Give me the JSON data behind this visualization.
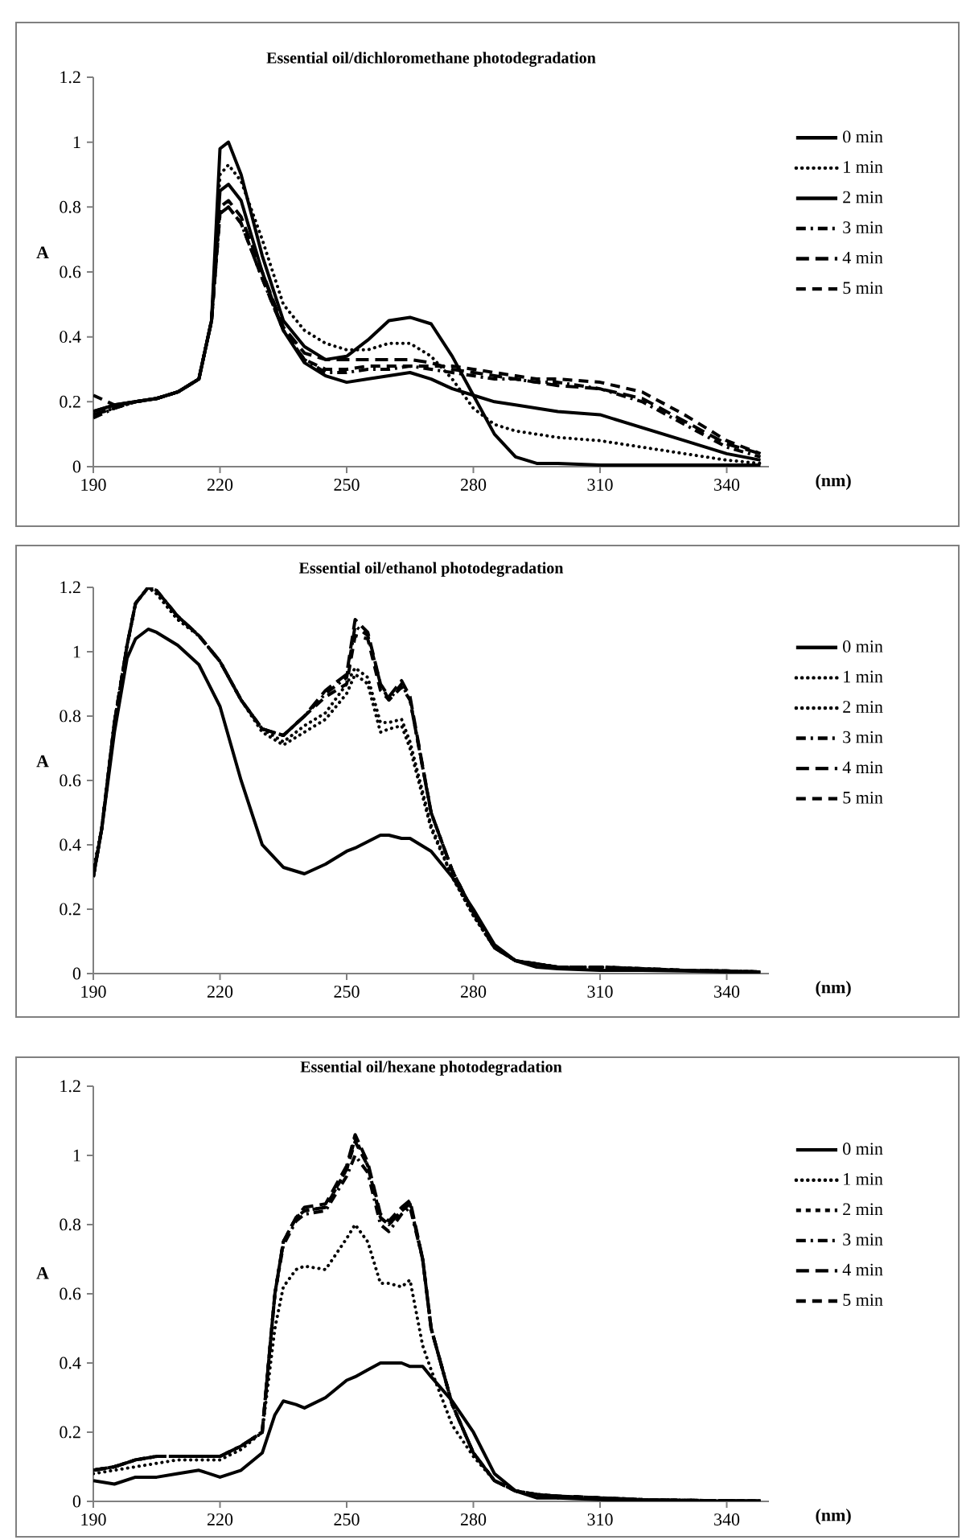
{
  "chart_data": [
    {
      "type": "line",
      "title": "Essential oil/dichloromethane photodegradation",
      "xlabel": "(nm)",
      "ylabel": "A",
      "xlim": [
        190,
        350
      ],
      "xticks": [
        190,
        220,
        250,
        280,
        310,
        340
      ],
      "ylim": [
        0,
        1.2
      ],
      "yticks": [
        0,
        0.2,
        0.4,
        0.6,
        0.8,
        1,
        1.2
      ],
      "legend": "right",
      "x": [
        190,
        195,
        200,
        205,
        210,
        215,
        218,
        220,
        222,
        225,
        230,
        235,
        240,
        245,
        250,
        255,
        260,
        265,
        270,
        275,
        280,
        285,
        290,
        295,
        300,
        310,
        320,
        330,
        340,
        348
      ],
      "series": [
        {
          "name": "0 min",
          "color": "#000000",
          "line_style": "solid",
          "values": [
            0.17,
            0.19,
            0.2,
            0.21,
            0.23,
            0.27,
            0.45,
            0.98,
            1.0,
            0.9,
            0.65,
            0.45,
            0.37,
            0.33,
            0.34,
            0.39,
            0.45,
            0.46,
            0.44,
            0.34,
            0.22,
            0.1,
            0.03,
            0.01,
            0.01,
            0.005,
            0.005,
            0.005,
            0.005,
            0.005
          ]
        },
        {
          "name": "1 min",
          "color": "#000000",
          "line_style": "dotted",
          "values": [
            0.16,
            0.18,
            0.2,
            0.21,
            0.23,
            0.27,
            0.45,
            0.9,
            0.93,
            0.88,
            0.7,
            0.5,
            0.42,
            0.38,
            0.36,
            0.36,
            0.38,
            0.38,
            0.34,
            0.27,
            0.18,
            0.13,
            0.11,
            0.1,
            0.09,
            0.08,
            0.06,
            0.04,
            0.02,
            0.01
          ]
        },
        {
          "name": "2 min",
          "color": "#000000",
          "line_style": "solid",
          "values": [
            0.17,
            0.19,
            0.2,
            0.21,
            0.23,
            0.27,
            0.45,
            0.85,
            0.87,
            0.82,
            0.6,
            0.42,
            0.32,
            0.28,
            0.26,
            0.27,
            0.28,
            0.29,
            0.27,
            0.24,
            0.22,
            0.2,
            0.19,
            0.18,
            0.17,
            0.16,
            0.12,
            0.08,
            0.04,
            0.02
          ]
        },
        {
          "name": "3 min",
          "color": "#000000",
          "line_style": "dashed",
          "values": [
            0.15,
            0.18,
            0.2,
            0.21,
            0.23,
            0.27,
            0.45,
            0.78,
            0.8,
            0.75,
            0.58,
            0.42,
            0.33,
            0.29,
            0.29,
            0.3,
            0.3,
            0.31,
            0.3,
            0.29,
            0.28,
            0.27,
            0.27,
            0.26,
            0.26,
            0.24,
            0.2,
            0.13,
            0.06,
            0.03
          ]
        },
        {
          "name": "4 min",
          "color": "#000000",
          "line_style": "dashed",
          "values": [
            0.16,
            0.18,
            0.2,
            0.21,
            0.23,
            0.27,
            0.45,
            0.8,
            0.82,
            0.77,
            0.6,
            0.43,
            0.35,
            0.33,
            0.33,
            0.33,
            0.33,
            0.33,
            0.32,
            0.3,
            0.29,
            0.28,
            0.27,
            0.26,
            0.25,
            0.24,
            0.21,
            0.14,
            0.07,
            0.04
          ]
        },
        {
          "name": "5 min",
          "color": "#000000",
          "line_style": "dashed",
          "values": [
            0.22,
            0.19,
            0.2,
            0.21,
            0.23,
            0.27,
            0.45,
            0.78,
            0.8,
            0.75,
            0.58,
            0.42,
            0.33,
            0.3,
            0.3,
            0.31,
            0.31,
            0.31,
            0.31,
            0.31,
            0.3,
            0.29,
            0.28,
            0.27,
            0.27,
            0.26,
            0.23,
            0.16,
            0.08,
            0.04
          ]
        }
      ]
    },
    {
      "type": "line",
      "title": "Essential oil/ethanol photodegradation",
      "xlabel": "(nm)",
      "ylabel": "A",
      "xlim": [
        190,
        350
      ],
      "xticks": [
        190,
        220,
        250,
        280,
        310,
        340
      ],
      "ylim": [
        0,
        1.2
      ],
      "yticks": [
        0,
        0.2,
        0.4,
        0.6,
        0.8,
        1,
        1.2
      ],
      "legend": "right",
      "x": [
        190,
        192,
        195,
        198,
        200,
        203,
        205,
        210,
        215,
        220,
        225,
        230,
        235,
        240,
        245,
        250,
        252,
        255,
        258,
        260,
        263,
        265,
        270,
        275,
        280,
        285,
        290,
        295,
        300,
        310,
        320,
        330,
        340,
        348
      ],
      "series": [
        {
          "name": "0 min",
          "color": "#000000",
          "line_style": "solid",
          "values": [
            0.3,
            0.45,
            0.75,
            0.98,
            1.04,
            1.07,
            1.06,
            1.02,
            0.96,
            0.83,
            0.6,
            0.4,
            0.33,
            0.31,
            0.34,
            0.38,
            0.39,
            0.41,
            0.43,
            0.43,
            0.42,
            0.42,
            0.38,
            0.3,
            0.2,
            0.09,
            0.04,
            0.02,
            0.015,
            0.01,
            0.01,
            0.008,
            0.005,
            0.005
          ]
        },
        {
          "name": "1 min",
          "color": "#000000",
          "line_style": "dotted",
          "values": [
            0.32,
            0.45,
            0.78,
            1.02,
            1.15,
            1.2,
            1.18,
            1.1,
            1.05,
            0.97,
            0.85,
            0.75,
            0.71,
            0.75,
            0.79,
            0.87,
            0.93,
            0.9,
            0.75,
            0.76,
            0.77,
            0.7,
            0.45,
            0.3,
            0.18,
            0.08,
            0.04,
            0.03,
            0.02,
            0.02,
            0.015,
            0.01,
            0.008,
            0.005
          ]
        },
        {
          "name": "2 min",
          "color": "#000000",
          "line_style": "dotted",
          "values": [
            0.32,
            0.45,
            0.78,
            1.02,
            1.15,
            1.2,
            1.18,
            1.1,
            1.05,
            0.97,
            0.85,
            0.76,
            0.72,
            0.77,
            0.81,
            0.9,
            0.95,
            0.92,
            0.78,
            0.78,
            0.79,
            0.72,
            0.46,
            0.3,
            0.18,
            0.08,
            0.04,
            0.03,
            0.02,
            0.02,
            0.015,
            0.01,
            0.008,
            0.005
          ]
        },
        {
          "name": "3 min",
          "color": "#000000",
          "line_style": "dashed",
          "values": [
            0.3,
            0.45,
            0.78,
            1.02,
            1.15,
            1.2,
            1.19,
            1.11,
            1.05,
            0.97,
            0.85,
            0.76,
            0.74,
            0.8,
            0.87,
            0.92,
            1.08,
            1.05,
            0.9,
            0.85,
            0.9,
            0.85,
            0.5,
            0.32,
            0.19,
            0.08,
            0.04,
            0.03,
            0.02,
            0.02,
            0.015,
            0.01,
            0.008,
            0.005
          ]
        },
        {
          "name": "4 min",
          "color": "#000000",
          "line_style": "dashed",
          "values": [
            0.3,
            0.45,
            0.78,
            1.02,
            1.15,
            1.2,
            1.19,
            1.11,
            1.05,
            0.97,
            0.85,
            0.76,
            0.74,
            0.8,
            0.88,
            0.93,
            1.1,
            1.06,
            0.9,
            0.86,
            0.91,
            0.86,
            0.5,
            0.32,
            0.19,
            0.08,
            0.04,
            0.03,
            0.02,
            0.02,
            0.015,
            0.01,
            0.008,
            0.005
          ]
        },
        {
          "name": "5 min",
          "color": "#000000",
          "line_style": "dashed",
          "values": [
            0.3,
            0.45,
            0.78,
            1.02,
            1.15,
            1.2,
            1.19,
            1.11,
            1.05,
            0.97,
            0.85,
            0.76,
            0.74,
            0.8,
            0.86,
            0.9,
            1.05,
            1.04,
            0.88,
            0.85,
            0.89,
            0.85,
            0.5,
            0.32,
            0.19,
            0.08,
            0.04,
            0.03,
            0.02,
            0.02,
            0.015,
            0.01,
            0.008,
            0.005
          ]
        }
      ]
    },
    {
      "type": "line",
      "title": "Essential oil/hexane photodegradation",
      "xlabel": "(nm)",
      "ylabel": "A",
      "xlim": [
        190,
        350
      ],
      "xticks": [
        190,
        220,
        250,
        280,
        310,
        340
      ],
      "ylim": [
        0,
        1.2
      ],
      "yticks": [
        0,
        0.2,
        0.4,
        0.6,
        0.8,
        1,
        1.2
      ],
      "legend": "right",
      "x": [
        190,
        195,
        200,
        205,
        210,
        215,
        220,
        225,
        230,
        233,
        235,
        238,
        240,
        245,
        250,
        252,
        255,
        258,
        260,
        263,
        265,
        268,
        270,
        275,
        280,
        285,
        290,
        295,
        300,
        310,
        320,
        330,
        340,
        348
      ],
      "series": [
        {
          "name": "0 min",
          "color": "#000000",
          "line_style": "solid",
          "values": [
            0.06,
            0.05,
            0.07,
            0.07,
            0.08,
            0.09,
            0.07,
            0.09,
            0.14,
            0.25,
            0.29,
            0.28,
            0.27,
            0.3,
            0.35,
            0.36,
            0.38,
            0.4,
            0.4,
            0.4,
            0.39,
            0.39,
            0.36,
            0.29,
            0.2,
            0.08,
            0.03,
            0.01,
            0.01,
            0.005,
            0.003,
            0.002,
            0.001,
            0.001
          ]
        },
        {
          "name": "1 min",
          "color": "#000000",
          "line_style": "dotted",
          "values": [
            0.08,
            0.09,
            0.1,
            0.11,
            0.12,
            0.12,
            0.12,
            0.15,
            0.2,
            0.5,
            0.62,
            0.67,
            0.68,
            0.67,
            0.76,
            0.8,
            0.75,
            0.63,
            0.63,
            0.62,
            0.64,
            0.45,
            0.38,
            0.22,
            0.13,
            0.06,
            0.03,
            0.02,
            0.01,
            0.008,
            0.005,
            0.003,
            0.002,
            0.001
          ]
        },
        {
          "name": "2 min",
          "color": "#000000",
          "line_style": "dashed",
          "values": [
            0.09,
            0.1,
            0.12,
            0.13,
            0.13,
            0.13,
            0.13,
            0.16,
            0.2,
            0.6,
            0.75,
            0.82,
            0.84,
            0.85,
            0.96,
            1.05,
            0.97,
            0.82,
            0.8,
            0.84,
            0.86,
            0.7,
            0.5,
            0.28,
            0.14,
            0.06,
            0.03,
            0.02,
            0.015,
            0.01,
            0.005,
            0.003,
            0.002,
            0.001
          ]
        },
        {
          "name": "3 min",
          "color": "#000000",
          "line_style": "dashed",
          "values": [
            0.09,
            0.1,
            0.12,
            0.13,
            0.13,
            0.13,
            0.13,
            0.16,
            0.2,
            0.6,
            0.74,
            0.81,
            0.83,
            0.84,
            0.94,
            1.0,
            0.95,
            0.8,
            0.78,
            0.83,
            0.85,
            0.7,
            0.5,
            0.28,
            0.14,
            0.06,
            0.03,
            0.02,
            0.015,
            0.01,
            0.005,
            0.003,
            0.002,
            0.001
          ]
        },
        {
          "name": "4 min",
          "color": "#000000",
          "line_style": "dashed",
          "values": [
            0.09,
            0.1,
            0.12,
            0.13,
            0.13,
            0.13,
            0.13,
            0.16,
            0.2,
            0.6,
            0.75,
            0.82,
            0.85,
            0.86,
            0.97,
            1.06,
            0.98,
            0.83,
            0.81,
            0.85,
            0.87,
            0.7,
            0.5,
            0.28,
            0.14,
            0.06,
            0.03,
            0.02,
            0.015,
            0.01,
            0.005,
            0.003,
            0.002,
            0.001
          ]
        },
        {
          "name": "5 min",
          "color": "#000000",
          "line_style": "dashed",
          "values": [
            0.09,
            0.1,
            0.12,
            0.13,
            0.13,
            0.13,
            0.13,
            0.16,
            0.2,
            0.6,
            0.75,
            0.82,
            0.84,
            0.85,
            0.96,
            1.04,
            0.97,
            0.82,
            0.8,
            0.84,
            0.86,
            0.7,
            0.5,
            0.28,
            0.14,
            0.06,
            0.03,
            0.02,
            0.015,
            0.01,
            0.005,
            0.003,
            0.002,
            0.001
          ]
        }
      ]
    }
  ]
}
